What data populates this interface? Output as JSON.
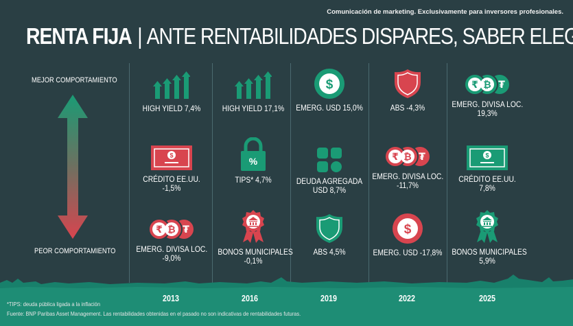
{
  "header": {
    "disclaimer": "Comunicación de marketing. Exclusivamente para inversores profesionales.",
    "title_bold": "RENTA FIJA",
    "title_separator": "|",
    "title_rest": "ANTE RENTABILIDADES DISPARES, SABER ELEGIR ES CLAVE"
  },
  "axis": {
    "top_label": "MEJOR COMPORTAMIENTO",
    "bottom_label": "PEOR COMPORTAMIENTO"
  },
  "colors": {
    "background": "#2a3f44",
    "green": "#1a9b75",
    "red": "#d8454f"
  },
  "columns": [
    {
      "year": "2013",
      "cells": [
        {
          "icon": "growth-bars-icon",
          "line1": "HIGH YIELD 7,4%",
          "line2": ""
        },
        {
          "icon": "banknote-icon-red",
          "line1": "CRÉDITO EE.UU.",
          "line2": "-1,5%"
        },
        {
          "icon": "currency-coins-icon-red",
          "line1": "EMERG. DIVISA LOC.",
          "line2": "-9,0%"
        }
      ]
    },
    {
      "year": "2016",
      "cells": [
        {
          "icon": "growth-bars-icon",
          "line1": "HIGH YIELD 17,1%",
          "line2": ""
        },
        {
          "icon": "padlock-percent-icon",
          "line1": "TIPS* 4,7%",
          "line2": ""
        },
        {
          "icon": "municipal-medal-icon-red",
          "line1": "BONOS MUNICIPALES",
          "line2": "-0,1%"
        }
      ]
    },
    {
      "year": "2019",
      "cells": [
        {
          "icon": "dollar-coin-icon-green",
          "line1": "EMERG. USD 15,0%",
          "line2": ""
        },
        {
          "icon": "aggregate-blocks-icon",
          "line1": "DEUDA AGREGADA",
          "line2": "USD 8,7%"
        },
        {
          "icon": "shield-icon-green",
          "line1": "ABS 4,5%",
          "line2": ""
        }
      ]
    },
    {
      "year": "2022",
      "cells": [
        {
          "icon": "shield-icon-red",
          "line1": "ABS -4,3%",
          "line2": ""
        },
        {
          "icon": "currency-coins-icon-red",
          "line1": "EMERG. DIVISA LOC.",
          "line2": "-11,7%"
        },
        {
          "icon": "dollar-coin-icon-red",
          "line1": "EMERG. USD -17,8%",
          "line2": ""
        }
      ]
    },
    {
      "year": "2025",
      "cells": [
        {
          "icon": "currency-coins-icon-green",
          "line1": "EMERG. DIVISA LOC.",
          "line2": "19,3%"
        },
        {
          "icon": "banknote-icon-green",
          "line1": "CRÉDITO EE.UU.",
          "line2": "7,8%"
        },
        {
          "icon": "municipal-medal-icon-green",
          "line1": "BONOS MUNICIPALES",
          "line2": "5,9%"
        }
      ]
    }
  ],
  "footnotes": {
    "tips": "*TIPS: deuda pública ligada a la inflación",
    "source": "Fuente: BNP Paribas Asset Management. Las rentabilidades obtenidas en el pasado no son indicativas de rentabilidades futuras."
  }
}
